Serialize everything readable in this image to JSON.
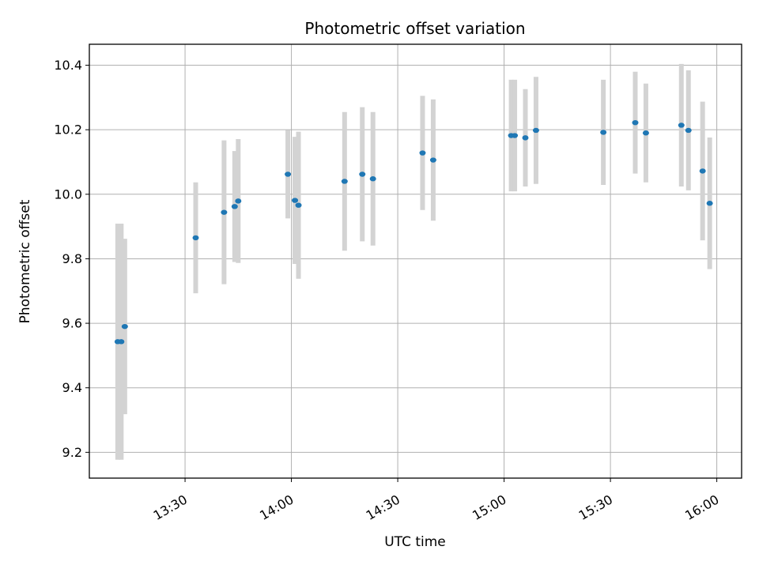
{
  "chart_data": {
    "type": "scatter",
    "title": "Photometric offset variation",
    "xlabel": "UTC time",
    "ylabel": "Photometric offset",
    "xlim": [
      "13:03",
      "16:07"
    ],
    "ylim": [
      9.12,
      10.465
    ],
    "x_ticks": [
      "13:30",
      "14:00",
      "14:30",
      "15:00",
      "15:30",
      "16:00"
    ],
    "y_ticks": [
      9.2,
      9.4,
      9.6,
      9.8,
      10.0,
      10.2,
      10.4
    ],
    "y_tick_labels": [
      "9.2",
      "9.4",
      "9.6",
      "9.8",
      "10.0",
      "10.2",
      "10.4"
    ],
    "grid": true,
    "colors": {
      "point": "#1f77b4",
      "errorbar": "#d3d3d3",
      "grid": "#b0b0b0"
    },
    "points": [
      {
        "x": "13:11",
        "y": 9.543,
        "err": 0.366
      },
      {
        "x": "13:12",
        "y": 9.543,
        "err": 0.366
      },
      {
        "x": "13:13",
        "y": 9.59,
        "err": 0.272
      },
      {
        "x": "13:33",
        "y": 9.865,
        "err": 0.172
      },
      {
        "x": "13:41",
        "y": 9.944,
        "err": 0.223
      },
      {
        "x": "13:44",
        "y": 9.962,
        "err": 0.172
      },
      {
        "x": "13:45",
        "y": 9.979,
        "err": 0.192
      },
      {
        "x": "13:59",
        "y": 10.062,
        "err": 0.137
      },
      {
        "x": "14:01",
        "y": 9.981,
        "err": 0.197
      },
      {
        "x": "14:02",
        "y": 9.966,
        "err": 0.228
      },
      {
        "x": "14:15",
        "y": 10.04,
        "err": 0.215
      },
      {
        "x": "14:20",
        "y": 10.062,
        "err": 0.208
      },
      {
        "x": "14:23",
        "y": 10.048,
        "err": 0.207
      },
      {
        "x": "14:37",
        "y": 10.128,
        "err": 0.177
      },
      {
        "x": "14:40",
        "y": 10.106,
        "err": 0.188
      },
      {
        "x": "15:02",
        "y": 10.182,
        "err": 0.173
      },
      {
        "x": "15:03",
        "y": 10.182,
        "err": 0.173
      },
      {
        "x": "15:06",
        "y": 10.175,
        "err": 0.151
      },
      {
        "x": "15:09",
        "y": 10.198,
        "err": 0.166
      },
      {
        "x": "15:28",
        "y": 10.192,
        "err": 0.163
      },
      {
        "x": "15:37",
        "y": 10.222,
        "err": 0.158
      },
      {
        "x": "15:40",
        "y": 10.19,
        "err": 0.153
      },
      {
        "x": "15:50",
        "y": 10.214,
        "err": 0.19
      },
      {
        "x": "15:52",
        "y": 10.198,
        "err": 0.186
      },
      {
        "x": "15:56",
        "y": 10.072,
        "err": 0.215
      },
      {
        "x": "15:58",
        "y": 9.972,
        "err": 0.204
      }
    ]
  }
}
